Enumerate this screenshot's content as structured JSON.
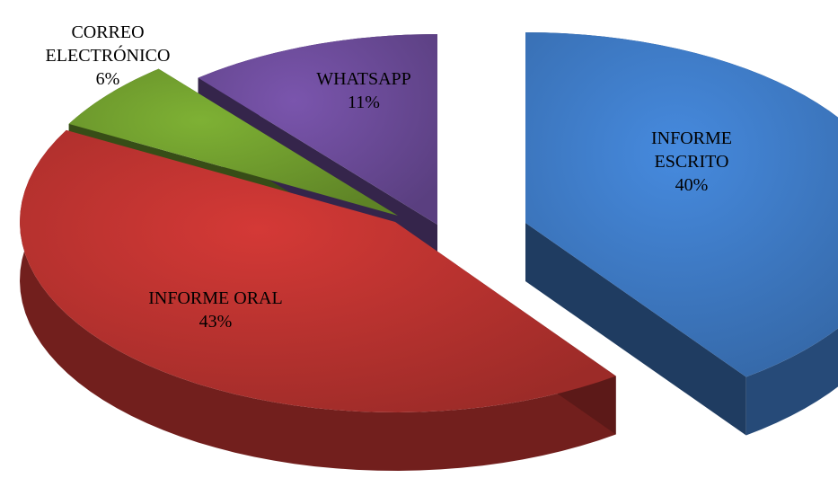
{
  "chart_data": {
    "type": "pie",
    "title": "",
    "categories": [
      "INFORME ESCRITO",
      "INFORME ORAL",
      "CORREO ELECTRÓNICO",
      "WHATSAPP"
    ],
    "values": [
      40,
      43,
      6,
      11
    ],
    "unit": "%",
    "colors": [
      "#3d78c1",
      "#b8322f",
      "#6e9a2d",
      "#6a4a96"
    ],
    "labels": [
      {
        "lines": [
          "INFORME",
          "ESCRITO",
          "40%"
        ]
      },
      {
        "lines": [
          "INFORME ORAL",
          "43%"
        ]
      },
      {
        "lines": [
          "CORREO",
          "ELECTRÓNICO",
          "6%"
        ]
      },
      {
        "lines": [
          "WHATSAPP",
          "11%"
        ]
      }
    ],
    "style": "3d-exploded-pie",
    "legend": "none"
  }
}
